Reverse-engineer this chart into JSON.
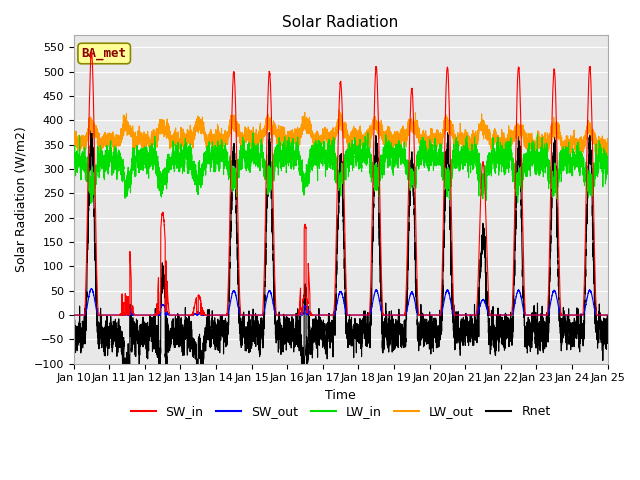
{
  "title": "Solar Radiation",
  "xlabel": "Time",
  "ylabel": "Solar Radiation (W/m2)",
  "ylim": [
    -100,
    575
  ],
  "colors": {
    "SW_in": "#ff0000",
    "SW_out": "#0000ff",
    "LW_in": "#00dd00",
    "LW_out": "#ff9900",
    "Rnet": "#000000"
  },
  "annotation_text": "BA_met",
  "annotation_color": "#880000",
  "annotation_bg": "#ffff99",
  "background_color": "#e8e8e8",
  "grid_color": "#ffffff"
}
